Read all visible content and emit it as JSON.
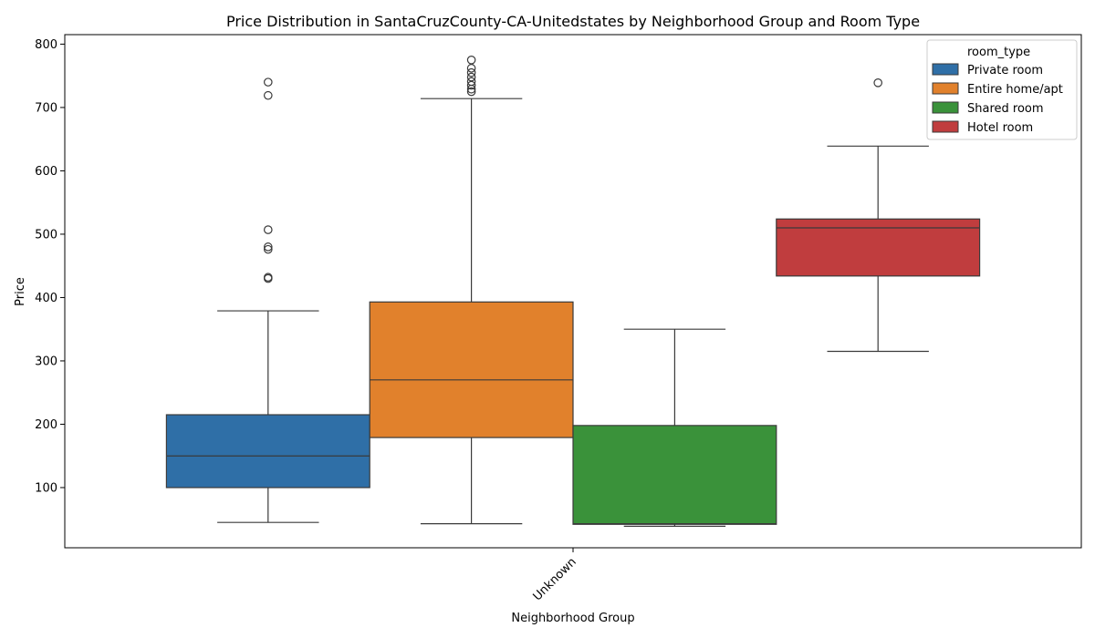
{
  "chart_data": {
    "type": "box",
    "title": "Price Distribution in SantaCruzCounty-CA-Unitedstates by Neighborhood Group and Room Type",
    "xlabel": "Neighborhood Group",
    "ylabel": "Price",
    "categories": [
      "Unknown"
    ],
    "ylim": [
      5,
      815
    ],
    "yticks": [
      100,
      200,
      300,
      400,
      500,
      600,
      700,
      800
    ],
    "grid": false,
    "legend": {
      "title": "room_type",
      "placement": "top-right"
    },
    "series": [
      {
        "name": "Private room",
        "color": "#2f6fa7",
        "whisker_low": 45,
        "q1": 100,
        "median": 150,
        "q3": 215,
        "whisker_high": 379,
        "outliers": [
          430,
          432,
          476,
          480,
          507,
          719,
          740
        ]
      },
      {
        "name": "Entire home/apt",
        "color": "#e1812c",
        "whisker_low": 43,
        "q1": 179,
        "median": 270,
        "q3": 393,
        "whisker_high": 714,
        "outliers": [
          725,
          729,
          735,
          741,
          748,
          755,
          762,
          775
        ]
      },
      {
        "name": "Shared room",
        "color": "#3a923a",
        "whisker_low": 39,
        "q1": 42,
        "median": 43,
        "q3": 198,
        "whisker_high": 350,
        "outliers": []
      },
      {
        "name": "Hotel room",
        "color": "#c03d3e",
        "whisker_low": 315,
        "q1": 434,
        "median": 510,
        "q3": 524,
        "whisker_high": 639,
        "outliers": [
          739
        ]
      }
    ]
  }
}
